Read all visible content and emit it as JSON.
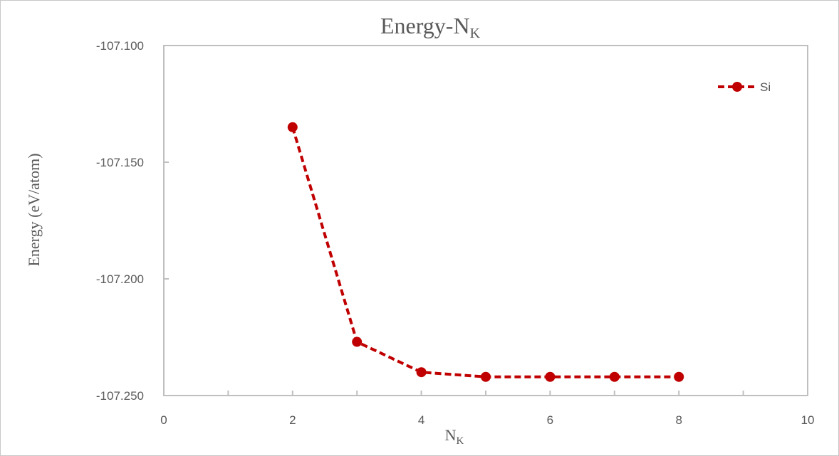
{
  "chart_data": {
    "type": "line",
    "title": "Energy-N",
    "title_subscript": "K",
    "xlabel": "N",
    "xlabel_subscript": "K",
    "ylabel": "Energy  (eV/atom)",
    "xlim": [
      0,
      10
    ],
    "ylim": [
      -107.25,
      -107.1
    ],
    "x_ticks": [
      "0",
      "2",
      "4",
      "6",
      "8",
      "10"
    ],
    "y_ticks": [
      "-107.100",
      "-107.150",
      "-107.200",
      "-107.250"
    ],
    "grid": false,
    "legend_position": "top-right",
    "series": [
      {
        "name": "Si",
        "color": "#C00000",
        "line_style": "dashed",
        "marker": "circle",
        "x": [
          2,
          3,
          4,
          5,
          6,
          7,
          8
        ],
        "values": [
          -107.135,
          -107.227,
          -107.24,
          -107.242,
          -107.242,
          -107.242,
          -107.242
        ]
      }
    ]
  }
}
